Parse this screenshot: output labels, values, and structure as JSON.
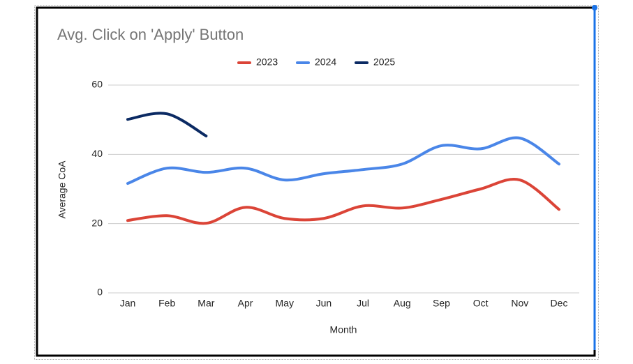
{
  "chart_data": {
    "type": "line",
    "title": "Avg. Click on 'Apply' Button",
    "x_label": "Month",
    "y_label": "Average CoA",
    "categories": [
      "Jan",
      "Feb",
      "Mar",
      "Apr",
      "May",
      "Jun",
      "Jul",
      "Aug",
      "Sep",
      "Oct",
      "Nov",
      "Dec"
    ],
    "series": [
      {
        "name": "2023",
        "color": "#db4437",
        "values": [
          20.9,
          22.3,
          20.1,
          24.7,
          21.5,
          21.5,
          25.1,
          24.5,
          27,
          30,
          32.6,
          24.1
        ]
      },
      {
        "name": "2024",
        "color": "#4a86e8",
        "values": [
          31.6,
          36,
          34.8,
          36,
          32.6,
          34.4,
          35.6,
          37.2,
          42.5,
          41.6,
          44.7,
          37.2
        ]
      },
      {
        "name": "2025",
        "color": "#0b2a63",
        "values": [
          50.1,
          51.7,
          45.3,
          null,
          null,
          null,
          null,
          null,
          null,
          null,
          null,
          null
        ]
      }
    ],
    "ylim": [
      0,
      60
    ],
    "yticks": [
      0,
      20,
      40,
      60
    ],
    "grid": true,
    "legend": "top"
  }
}
